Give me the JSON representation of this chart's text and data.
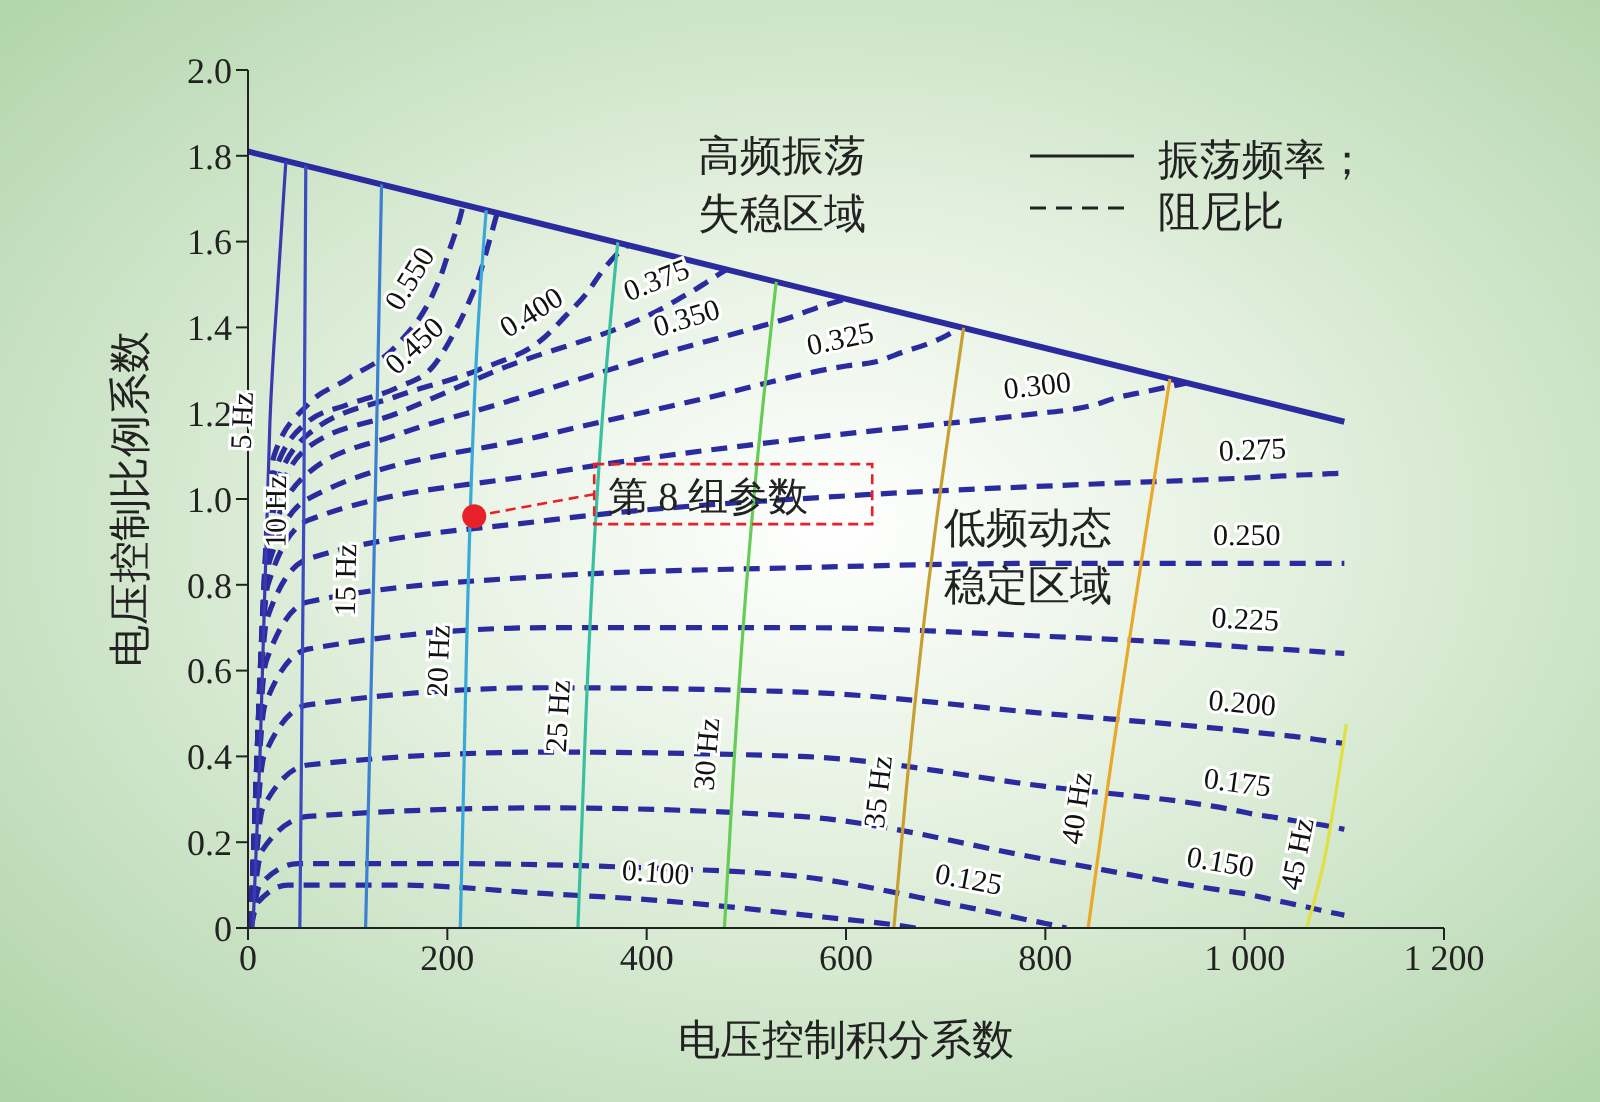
{
  "chart_data": {
    "type": "line",
    "xlabel": "电压控制积分系数",
    "ylabel": "电压控制比例系数",
    "xlim": [
      0,
      1200
    ],
    "ylim": [
      0,
      2
    ],
    "xticks": [
      0,
      200,
      400,
      600,
      800,
      {
        "value": 1000,
        "label": "1 000"
      },
      {
        "value": 1200,
        "label": "1 200"
      }
    ],
    "yticks": [
      0,
      0.2,
      0.4,
      0.6,
      0.8,
      {
        "value": 1,
        "label": "1.0"
      },
      1.2,
      1.4,
      1.6,
      1.8,
      {
        "value": 2,
        "label": "2.0"
      }
    ],
    "annotations": [
      "高频振荡失稳区域",
      "低频动态稳定区域",
      {
        "text": "第 8 组参数",
        "x": 227,
        "y": 0.96
      },
      "振荡频率；",
      "阻尼比"
    ],
    "series": [
      {
        "color": "#2b2ba0",
        "line_style": "solid",
        "x": [
          0,
          1100
        ],
        "values": [
          1.81,
          1.18
        ]
      },
      {
        "name": "0.100",
        "color": "#2b2ba0",
        "line_style": "dashed",
        "x": [
          3,
          10,
          40,
          150,
          300,
          407,
          480,
          540,
          600,
          640,
          670
        ],
        "values": [
          0,
          0.06,
          0.1,
          0.1,
          0.08,
          0.065,
          0.05,
          0.035,
          0.02,
          0.01,
          0
        ]
      },
      {
        "name": "0.125",
        "color": "#2b2ba0",
        "line_style": "dashed",
        "x": [
          3,
          12,
          50,
          200,
          400,
          554,
          718,
          740,
          760,
          780,
          795,
          810,
          821
        ],
        "values": [
          0,
          0.1,
          0.15,
          0.15,
          0.14,
          0.12,
          0.05,
          0.04,
          0.03,
          0.02,
          0.013,
          0.006,
          0
        ]
      },
      {
        "name": "0.150",
        "color": "#2b2ba0",
        "line_style": "dashed",
        "x": [
          3,
          14,
          60,
          300,
          554,
          800,
          971,
          1000,
          1030,
          1050,
          1070,
          1085,
          1100
        ],
        "values": [
          0,
          0.18,
          0.26,
          0.28,
          0.26,
          0.16,
          0.09,
          0.08,
          0.065,
          0.055,
          0.045,
          0.037,
          0.03
        ]
      },
      {
        "name": "0.175",
        "color": "#2b2ba0",
        "line_style": "dashed",
        "x": [
          3,
          15,
          60,
          300,
          554,
          800,
          989,
          1010,
          1030,
          1050,
          1070,
          1085,
          1100
        ],
        "values": [
          0,
          0.28,
          0.38,
          0.41,
          0.4,
          0.33,
          0.275,
          0.265,
          0.258,
          0.25,
          0.243,
          0.237,
          0.23
        ]
      },
      {
        "name": "0.200",
        "color": "#2b2ba0",
        "line_style": "dashed",
        "x": [
          3,
          16,
          60,
          300,
          554,
          800,
          995,
          1015,
          1035,
          1055,
          1070,
          1085,
          1100
        ],
        "values": [
          0,
          0.4,
          0.52,
          0.56,
          0.55,
          0.5,
          0.46,
          0.455,
          0.45,
          0.445,
          0.44,
          0.435,
          0.43
        ]
      },
      {
        "name": "0.225",
        "color": "#2b2ba0",
        "line_style": "dashed",
        "x": [
          3,
          17,
          60,
          300,
          554,
          800,
          999,
          1015,
          1035,
          1055,
          1070,
          1085,
          1100
        ],
        "values": [
          0,
          0.52,
          0.65,
          0.7,
          0.7,
          0.68,
          0.655,
          0.652,
          0.65,
          0.647,
          0.645,
          0.642,
          0.64
        ]
      },
      {
        "name": "0.250",
        "color": "#2b2ba0",
        "line_style": "dashed",
        "x": [
          3,
          18,
          60,
          300,
          554,
          800,
          1002,
          1020,
          1040,
          1055,
          1070,
          1085,
          1100
        ],
        "values": [
          0,
          0.62,
          0.76,
          0.82,
          0.84,
          0.85,
          0.85,
          0.85,
          0.85,
          0.85,
          0.85,
          0.85,
          0.85
        ]
      },
      {
        "name": "0.275",
        "color": "#2b2ba0",
        "line_style": "dashed",
        "x": [
          3,
          19,
          60,
          300,
          620,
          850,
          1009,
          1025,
          1040,
          1055,
          1070,
          1085,
          1100
        ],
        "values": [
          0,
          0.72,
          0.86,
          0.95,
          1.01,
          1.035,
          1.05,
          1.052,
          1.054,
          1.056,
          1.057,
          1.059,
          1.06
        ]
      },
      {
        "name": "0.300",
        "color": "#2b2ba0",
        "line_style": "dashed",
        "x": [
          3,
          20,
          60,
          300,
          554,
          795,
          830,
          850,
          870,
          900,
          941
        ],
        "values": [
          0,
          0.8,
          0.95,
          1.06,
          1.14,
          1.2,
          1.21,
          1.22,
          1.235,
          1.25,
          1.27
        ]
      },
      {
        "name": "0.325",
        "color": "#2b2ba0",
        "line_style": "dashed",
        "x": [
          3,
          21,
          60,
          300,
          450,
          600,
          630,
          660,
          680,
          700,
          714
        ],
        "values": [
          0,
          0.85,
          1.0,
          1.15,
          1.23,
          1.31,
          1.32,
          1.345,
          1.36,
          1.38,
          1.4
        ]
      },
      {
        "name": "0.350",
        "color": "#2b2ba0",
        "line_style": "dashed",
        "x": [
          3,
          22,
          60,
          150,
          250,
          448,
          480,
          510,
          540,
          570,
          600
        ],
        "values": [
          0,
          0.9,
          1.06,
          1.15,
          1.22,
          1.36,
          1.38,
          1.4,
          1.42,
          1.445,
          1.466
        ]
      },
      {
        "name": "0.375",
        "color": "#2b2ba0",
        "line_style": "dashed",
        "x": [
          3,
          23,
          60,
          150,
          250,
          420,
          435,
          450,
          460,
          470,
          480
        ],
        "values": [
          0,
          0.95,
          1.12,
          1.2,
          1.3,
          1.45,
          1.47,
          1.49,
          1.505,
          1.52,
          1.535
        ]
      },
      {
        "name": "0.400",
        "color": "#2b2ba0",
        "line_style": "dashed",
        "x": [
          3,
          24,
          60,
          150,
          230,
          299,
          320,
          340,
          355,
          370,
          380
        ],
        "values": [
          0,
          1.0,
          1.15,
          1.24,
          1.3,
          1.38,
          1.43,
          1.48,
          1.53,
          1.57,
          1.59
        ]
      },
      {
        "name": "0.450",
        "color": "#2b2ba0",
        "line_style": "dashed",
        "x": [
          3,
          25,
          60,
          100,
          150,
          186,
          205,
          220,
          232,
          242,
          250
        ],
        "values": [
          0,
          1.05,
          1.18,
          1.22,
          1.26,
          1.31,
          1.38,
          1.45,
          1.52,
          1.6,
          1.667
        ]
      },
      {
        "name": "0.550",
        "color": "#2b2ba0",
        "line_style": "dashed",
        "x": [
          3,
          26,
          60,
          100,
          150,
          186,
          195,
          202,
          208,
          212,
          216
        ],
        "values": [
          0,
          1.1,
          1.22,
          1.28,
          1.36,
          1.48,
          1.53,
          1.58,
          1.62,
          1.65,
          1.686
        ]
      },
      {
        "name": "5 Hz",
        "color": "#3a3ab0",
        "line_style": "solid",
        "x": [
          5,
          12,
          22,
          30,
          38
        ],
        "values": [
          0,
          0.4,
          1.18,
          1.5,
          1.788
        ]
      },
      {
        "name": "10 Hz",
        "color": "#3a4cc0",
        "line_style": "solid",
        "x": [
          52,
          56,
          58
        ],
        "values": [
          0,
          0.97,
          1.777
        ]
      },
      {
        "name": "15 Hz",
        "color": "#3d7fd0",
        "line_style": "solid",
        "x": [
          118,
          126,
          134
        ],
        "values": [
          0,
          0.81,
          1.733
        ]
      },
      {
        "name": "20 Hz",
        "color": "#3aa8d8",
        "line_style": "solid",
        "x": [
          213,
          216,
          219,
          239
        ],
        "values": [
          0,
          0.3,
          0.62,
          1.673
        ]
      },
      {
        "name": "25 Hz",
        "color": "#38c0a0",
        "line_style": "solid",
        "x": [
          331,
          339,
          371
        ],
        "values": [
          0,
          0.49,
          1.598
        ]
      },
      {
        "name": "30 Hz",
        "color": "#66cc55",
        "line_style": "solid",
        "x": [
          478,
          488,
          530
        ],
        "values": [
          0,
          0.4,
          1.506
        ]
      },
      {
        "name": "35 Hz",
        "color": "#c8a032",
        "line_style": "solid",
        "x": [
          648,
          660,
          718
        ],
        "values": [
          0,
          0.31,
          1.399
        ]
      },
      {
        "name": "40 Hz",
        "color": "#e8a82a",
        "line_style": "solid",
        "x": [
          843,
          859,
          925
        ],
        "values": [
          0,
          0.27,
          1.28
        ]
      },
      {
        "name": "45 Hz",
        "color": "#e0e040",
        "line_style": "solid",
        "x": [
          1062,
          1080,
          1102
        ],
        "values": [
          0,
          0.16,
          0.475
        ]
      },
      {
        "type": "scatter",
        "color": "#e8202a",
        "x": [
          227
        ],
        "values": [
          0.96
        ]
      }
    ]
  }
}
